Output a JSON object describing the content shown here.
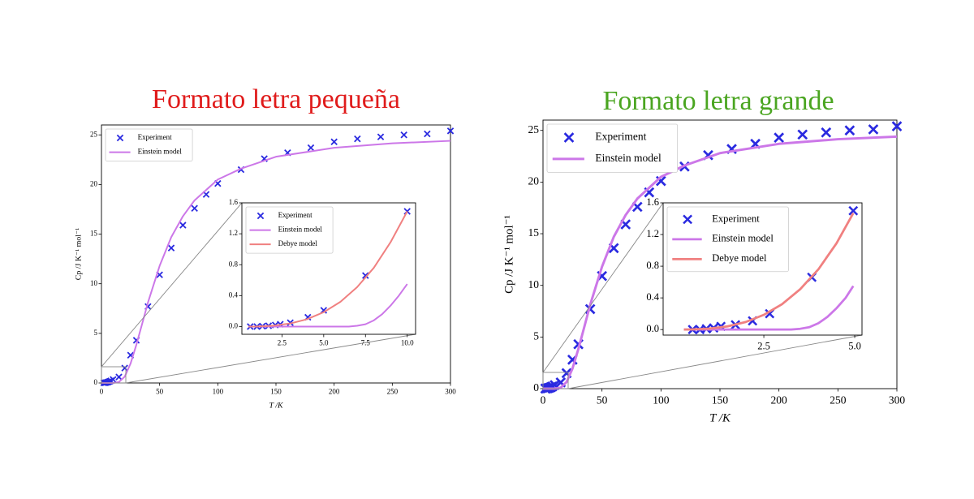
{
  "chart_data": [
    {
      "type": "scatter",
      "title": "Formato letra pequeña",
      "title_color": "#e01b1b",
      "xlabel": "T /K",
      "ylabel": "Cp /J K⁻¹ mol⁻¹",
      "xlim": [
        0,
        300
      ],
      "ylim": [
        0,
        26
      ],
      "xticks": [
        0,
        50,
        100,
        150,
        200,
        250,
        300
      ],
      "yticks": [
        0,
        5,
        10,
        15,
        20,
        25
      ],
      "legend": "upper left",
      "series": [
        {
          "name": "Experiment",
          "type": "scatter",
          "color": "#2a2ae0",
          "x": [
            2,
            3,
            4,
            5,
            6,
            7,
            8,
            10,
            15,
            20,
            25,
            30,
            40,
            50,
            60,
            70,
            80,
            90,
            100,
            120,
            140,
            160,
            180,
            200,
            220,
            240,
            260,
            280,
            300
          ],
          "values": [
            0.01,
            0.02,
            0.04,
            0.07,
            0.11,
            0.16,
            0.22,
            0.35,
            0.6,
            1.5,
            2.8,
            4.3,
            7.7,
            10.9,
            13.6,
            15.9,
            17.6,
            19,
            20.1,
            21.5,
            22.6,
            23.2,
            23.7,
            24.3,
            24.6,
            24.8,
            25,
            25.1,
            25.4
          ]
        },
        {
          "name": "Einstein model",
          "type": "line",
          "color": "#cc77e8",
          "x": [
            0,
            10,
            15,
            20,
            25,
            30,
            35,
            40,
            50,
            60,
            70,
            80,
            100,
            120,
            150,
            200,
            250,
            300
          ],
          "values": [
            0,
            0,
            0.09,
            0.64,
            1.95,
            3.85,
            5.97,
            8.12,
            11.8,
            14.7,
            16.8,
            18.4,
            20.5,
            21.6,
            22.8,
            23.7,
            24.15,
            24.4
          ]
        }
      ],
      "inset": {
        "xlim": [
          0.1,
          10.5
        ],
        "ylim": [
          -0.1,
          1.6
        ],
        "xticks": [
          2.5,
          {
            "value": 5,
            "label": "5.0"
          },
          7.5,
          {
            "value": 10,
            "label": "10.0"
          }
        ],
        "yticks": [
          {
            "value": 0,
            "label": "0.0"
          },
          0.4,
          0.8,
          1.2,
          1.6
        ],
        "legend": "upper left",
        "series": [
          {
            "name": "Experiment",
            "type": "scatter",
            "color": "#2a2ae0",
            "x": [
              0.6,
              1.0,
              1.33,
              1.7,
              2.1,
              2.4,
              3.0,
              4.05,
              5.0,
              7.5,
              10
            ],
            "values": [
              0,
              0,
              0.005,
              0.01,
              0.02,
              0.03,
              0.05,
              0.12,
              0.21,
              0.66,
              1.49
            ]
          },
          {
            "name": "Einstein model",
            "type": "line",
            "color": "#cc77e8",
            "x": [
              0.5,
              6.5,
              7,
              7.5,
              8,
              8.5,
              9,
              9.5,
              10
            ],
            "values": [
              0,
              0,
              0.01,
              0.03,
              0.08,
              0.16,
              0.27,
              0.4,
              0.55
            ]
          },
          {
            "name": "Debye model",
            "type": "line",
            "color": "#f08080",
            "x": [
              0.5,
              1,
              2,
              3,
              4,
              5,
              6,
              7,
              8,
              9,
              10
            ],
            "values": [
              0,
              0.0015,
              0.012,
              0.04,
              0.095,
              0.186,
              0.32,
              0.51,
              0.76,
              1.09,
              1.49
            ]
          }
        ]
      }
    },
    {
      "type": "scatter",
      "title": "Formato letra grande",
      "title_color": "#4aa520",
      "xlabel": "T /K",
      "ylabel": "Cp /J K⁻¹ mol⁻¹",
      "xlim": [
        0,
        300
      ],
      "ylim": [
        0,
        26
      ],
      "xticks": [
        0,
        50,
        100,
        150,
        200,
        250,
        300
      ],
      "yticks": [
        0,
        5,
        10,
        15,
        20,
        25
      ],
      "legend": "upper left",
      "series": [
        {
          "name": "Experiment",
          "type": "scatter",
          "color": "#2a2ae0",
          "x": [
            2,
            3,
            4,
            5,
            6,
            7,
            8,
            10,
            15,
            20,
            25,
            30,
            40,
            50,
            60,
            70,
            80,
            90,
            100,
            120,
            140,
            160,
            180,
            200,
            220,
            240,
            260,
            280,
            300
          ],
          "values": [
            0.01,
            0.02,
            0.04,
            0.07,
            0.11,
            0.16,
            0.22,
            0.35,
            0.6,
            1.5,
            2.8,
            4.3,
            7.7,
            10.9,
            13.6,
            15.9,
            17.6,
            19,
            20.1,
            21.5,
            22.6,
            23.2,
            23.7,
            24.3,
            24.6,
            24.8,
            25,
            25.1,
            25.4
          ]
        },
        {
          "name": "Einstein model",
          "type": "line",
          "color": "#cc77e8",
          "x": [
            0,
            10,
            15,
            20,
            25,
            30,
            35,
            40,
            50,
            60,
            70,
            80,
            100,
            120,
            150,
            200,
            250,
            300
          ],
          "values": [
            0,
            0,
            0.09,
            0.64,
            1.95,
            3.85,
            5.97,
            8.12,
            11.8,
            14.7,
            16.8,
            18.4,
            20.5,
            21.6,
            22.8,
            23.7,
            24.15,
            24.4
          ]
        }
      ],
      "inset": {
        "xlim": [
          -0.27,
          5.2
        ],
        "ylim": [
          -0.07,
          1.6
        ],
        "xticks": [
          2.5,
          {
            "value": 5,
            "label": "5.0"
          }
        ],
        "yticks": [
          {
            "value": 0,
            "label": "0.0"
          },
          0.4,
          0.8,
          1.2,
          1.6
        ],
        "legend": "upper left",
        "series": [
          {
            "name": "Experiment",
            "type": "scatter",
            "color": "#2a2ae0",
            "x": [
              0.54,
              0.74,
              0.92,
              1.12,
              1.32,
              1.72,
              2.19,
              2.66,
              3.82,
              4.96
            ],
            "values": [
              0,
              0,
              0.01,
              0.02,
              0.04,
              0.06,
              0.11,
              0.2,
              0.66,
              1.5
            ]
          },
          {
            "name": "Einstein model",
            "type": "line",
            "color": "#cc77e8",
            "x": [
              0.3,
              3.25,
              3.5,
              3.75,
              4,
              4.25,
              4.5,
              4.75,
              4.96
            ],
            "values": [
              0,
              0,
              0.01,
              0.03,
              0.08,
              0.16,
              0.27,
              0.4,
              0.55
            ]
          },
          {
            "name": "Debye model",
            "type": "line",
            "color": "#f08080",
            "x": [
              0.3,
              0.5,
              1,
              1.5,
              2,
              2.5,
              3,
              3.5,
              4,
              4.5,
              4.96
            ],
            "values": [
              0,
              0.0015,
              0.012,
              0.04,
              0.095,
              0.186,
              0.32,
              0.51,
              0.76,
              1.09,
              1.47
            ]
          }
        ]
      }
    }
  ]
}
